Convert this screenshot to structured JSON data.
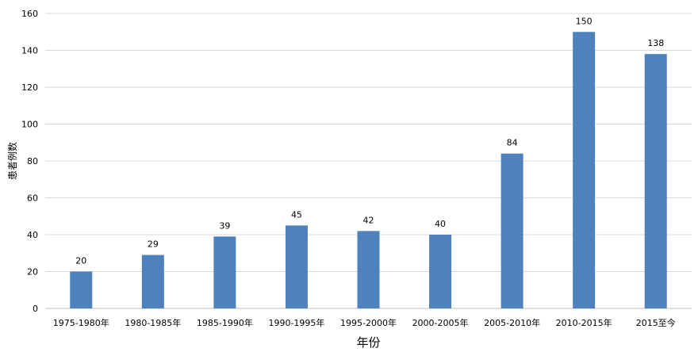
{
  "chart_data": {
    "type": "bar",
    "categories": [
      "1975-1980年",
      "1980-1985年",
      "1985-1990年",
      "1990-1995年",
      "1995-2000年",
      "2000-2005年",
      "2005-2010年",
      "2010-2015年",
      "2015至今"
    ],
    "values": [
      20,
      29,
      39,
      45,
      42,
      40,
      84,
      150,
      138
    ],
    "xlabel": "年份",
    "ylabel": "患者例数",
    "ylim": [
      0,
      160
    ],
    "yticks": [
      0,
      20,
      40,
      60,
      80,
      100,
      120,
      140,
      160
    ],
    "grid": true,
    "legend": "none",
    "bar_color": "#4f81bd",
    "grid_color": "#d9d9d9",
    "axis_color": "#bfbfbf"
  }
}
